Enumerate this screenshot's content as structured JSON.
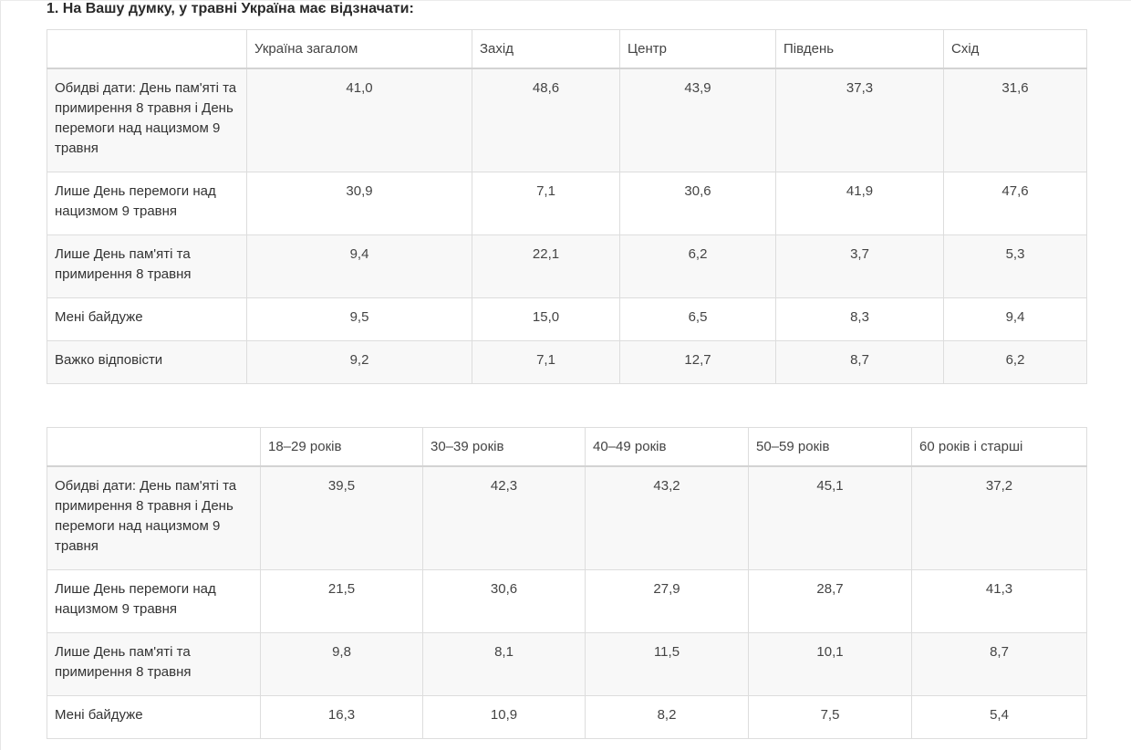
{
  "question": "1. На Вашу думку, у травні Україна має відзначати:",
  "table_regions": {
    "columns": [
      "",
      "Україна загалом",
      "Захід",
      "Центр",
      "Південь",
      "Схід"
    ],
    "rows": [
      {
        "label": "Обидві дати: День пам'яті та примирення 8 травня і День перемоги над нацизмом 9 травня",
        "values": [
          "41,0",
          "48,6",
          "43,9",
          "37,3",
          "31,6"
        ]
      },
      {
        "label": "Лише День перемоги над нацизмом 9 травня",
        "values": [
          "30,9",
          "7,1",
          "30,6",
          "41,9",
          "47,6"
        ]
      },
      {
        "label": "Лише День пам'яті та примирення 8 травня",
        "values": [
          "9,4",
          "22,1",
          "6,2",
          "3,7",
          "5,3"
        ]
      },
      {
        "label": "Мені байдуже",
        "values": [
          "9,5",
          "15,0",
          "6,5",
          "8,3",
          "9,4"
        ]
      },
      {
        "label": "Важко відповісти",
        "values": [
          "9,2",
          "7,1",
          "12,7",
          "8,7",
          "6,2"
        ]
      }
    ]
  },
  "table_ages": {
    "columns": [
      "",
      "18–29 років",
      "30–39 років",
      "40–49 років",
      "50–59 років",
      "60 років і старші"
    ],
    "rows": [
      {
        "label": "Обидві дати: День пам'яті та примирення 8 травня і День перемоги над нацизмом 9 травня",
        "values": [
          "39,5",
          "42,3",
          "43,2",
          "45,1",
          "37,2"
        ]
      },
      {
        "label": "Лише День перемоги над нацизмом 9 травня",
        "values": [
          "21,5",
          "30,6",
          "27,9",
          "28,7",
          "41,3"
        ]
      },
      {
        "label": "Лише День пам'яті та примирення 8 травня",
        "values": [
          "9,8",
          "8,1",
          "11,5",
          "10,1",
          "8,7"
        ]
      },
      {
        "label": "Мені байдуже",
        "values": [
          "16,3",
          "10,9",
          "8,2",
          "7,5",
          "5,4"
        ]
      }
    ]
  }
}
